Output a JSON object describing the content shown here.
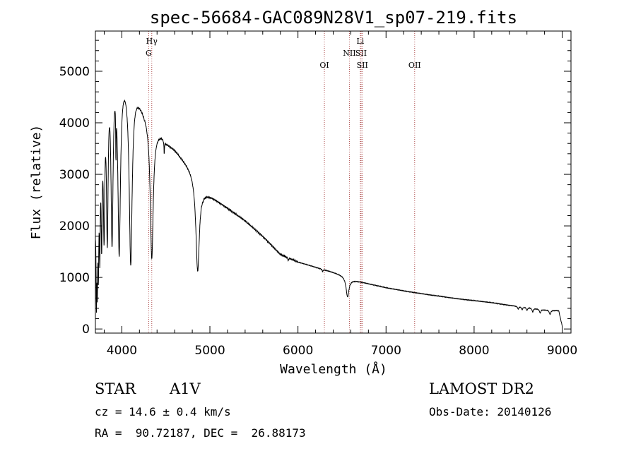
{
  "chart_data": {
    "type": "line",
    "title": "spec-56684-GAC089N28V1_sp07-219.fits",
    "xlabel": "Wavelength (Å)",
    "ylabel": "Flux (relative)",
    "xlim": [
      3700,
      9100
    ],
    "ylim": [
      -80,
      5780
    ],
    "xticks": [
      4000,
      5000,
      6000,
      7000,
      8000,
      9000
    ],
    "yticks": [
      0,
      1000,
      2000,
      3000,
      4000,
      5000
    ],
    "spectral_lines": [
      {
        "name": "Hγ",
        "wavelength": 4340,
        "row": 0
      },
      {
        "name": "G",
        "wavelength": 4305,
        "row": 1
      },
      {
        "name": "OI",
        "wavelength": 6300,
        "row": 2
      },
      {
        "name": "Li",
        "wavelength": 6708,
        "row": 0
      },
      {
        "name": "NII",
        "wavelength": 6584,
        "row": 1
      },
      {
        "name": "SII",
        "wavelength": 6717,
        "row": 1
      },
      {
        "name": "SII",
        "wavelength": 6731,
        "row": 2
      },
      {
        "name": "OII",
        "wavelength": 7325,
        "row": 2
      }
    ],
    "continuum": [
      [
        3700,
        2200
      ],
      [
        3750,
        4400
      ],
      [
        3800,
        5100
      ],
      [
        3850,
        5500
      ],
      [
        3900,
        5650
      ],
      [
        3950,
        5400
      ],
      [
        4000,
        5150
      ],
      [
        4050,
        5000
      ],
      [
        4100,
        4850
      ],
      [
        4150,
        4700
      ],
      [
        4200,
        4500
      ],
      [
        4250,
        4300
      ],
      [
        4300,
        4150
      ],
      [
        4350,
        4000
      ],
      [
        4380,
        3900
      ],
      [
        4450,
        3800
      ],
      [
        4500,
        3650
      ],
      [
        4600,
        3500
      ],
      [
        4700,
        3300
      ],
      [
        4800,
        3100
      ],
      [
        4850,
        3000
      ],
      [
        4920,
        2700
      ],
      [
        5000,
        2600
      ],
      [
        5200,
        2350
      ],
      [
        5400,
        2100
      ],
      [
        5600,
        1800
      ],
      [
        5800,
        1450
      ],
      [
        6000,
        1300
      ],
      [
        6200,
        1200
      ],
      [
        6400,
        1100
      ],
      [
        6550,
        1020
      ],
      [
        6600,
        960
      ],
      [
        6800,
        880
      ],
      [
        7000,
        800
      ],
      [
        7200,
        740
      ],
      [
        7500,
        660
      ],
      [
        7800,
        590
      ],
      [
        8000,
        550
      ],
      [
        8200,
        510
      ],
      [
        8400,
        460
      ],
      [
        8600,
        420
      ],
      [
        8800,
        370
      ],
      [
        8900,
        360
      ],
      [
        8960,
        360
      ],
      [
        9000,
        60
      ]
    ],
    "absorption": [
      {
        "center": 3712,
        "width": 5,
        "depth": 0.85
      },
      {
        "center": 3722,
        "width": 5,
        "depth": 0.75
      },
      {
        "center": 3734,
        "width": 6,
        "depth": 0.68
      },
      {
        "center": 3750,
        "width": 7,
        "depth": 0.65
      },
      {
        "center": 3771,
        "width": 8,
        "depth": 0.62
      },
      {
        "center": 3798,
        "width": 10,
        "depth": 0.62
      },
      {
        "center": 3835,
        "width": 12,
        "depth": 0.67
      },
      {
        "center": 3889,
        "width": 15,
        "depth": 0.69
      },
      {
        "center": 3933,
        "width": 3,
        "depth": 0.25
      },
      {
        "center": 3970,
        "width": 18,
        "depth": 0.72
      },
      {
        "center": 4101,
        "width": 20,
        "depth": 0.74
      },
      {
        "center": 4340,
        "width": 20,
        "depth": 0.66
      },
      {
        "center": 4481,
        "width": 3,
        "depth": 0.07
      },
      {
        "center": 4861,
        "width": 24,
        "depth": 0.62
      },
      {
        "center": 5890,
        "width": 4,
        "depth": 0.05
      },
      {
        "center": 6280,
        "width": 6,
        "depth": 0.04
      },
      {
        "center": 6563,
        "width": 20,
        "depth": 0.38
      },
      {
        "center": 8500,
        "width": 8,
        "depth": 0.12
      },
      {
        "center": 8545,
        "width": 8,
        "depth": 0.13
      },
      {
        "center": 8600,
        "width": 8,
        "depth": 0.14
      },
      {
        "center": 8665,
        "width": 9,
        "depth": 0.18
      },
      {
        "center": 8750,
        "width": 9,
        "depth": 0.19
      },
      {
        "center": 8862,
        "width": 10,
        "depth": 0.22
      }
    ]
  },
  "info": {
    "object_type": "STAR",
    "subclass": "A1V",
    "cz": "cz = 14.6 ± 0.4 km/s",
    "coords": "RA =  90.72187, DEC =  26.88173",
    "survey": "LAMOST DR2",
    "obs_date": "Obs-Date: 20140126"
  }
}
